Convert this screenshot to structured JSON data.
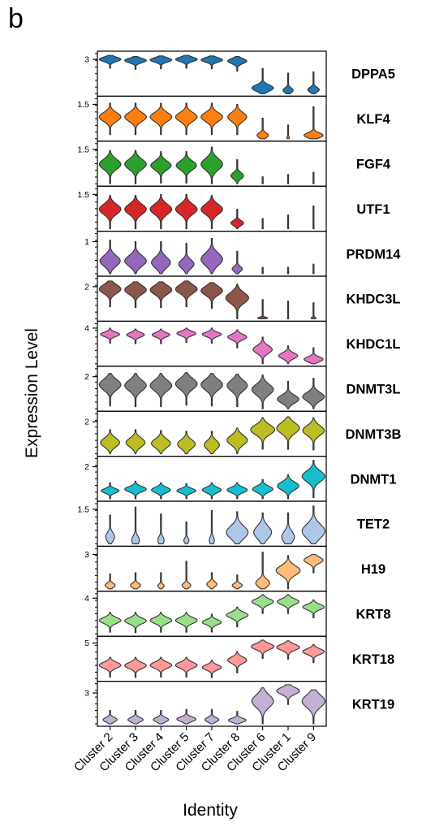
{
  "panel_letter": "b",
  "chart_data": {
    "type": "violin",
    "xlabel": "Identity",
    "ylabel": "Expression Level",
    "categories": [
      "Cluster 2",
      "Cluster 3",
      "Cluster 4",
      "Cluster 5",
      "Cluster 7",
      "Cluster 8",
      "Cluster 6",
      "Cluster 1",
      "Cluster 9"
    ],
    "genes": [
      {
        "name": "DPPA5",
        "color": "#1f77b4",
        "ymax": 3.5,
        "tick": "3",
        "tickval": 3,
        "centers": [
          3.0,
          2.9,
          2.95,
          3.0,
          2.95,
          2.85,
          0.5,
          0.3,
          0.35
        ],
        "spread": [
          0.35,
          0.35,
          0.35,
          0.35,
          0.35,
          0.4,
          0.5,
          0.4,
          0.4
        ],
        "widths": [
          0.85,
          0.85,
          0.85,
          0.85,
          0.85,
          0.75,
          0.85,
          0.4,
          0.45
        ],
        "tails": [
          0.5,
          0.55,
          0.3,
          0.8,
          0.45,
          0.6,
          0.0,
          0.0,
          0.0
        ],
        "tops": [
          3.3,
          3.2,
          3.25,
          3.3,
          3.25,
          3.15,
          2.2,
          1.8,
          1.9
        ]
      },
      {
        "name": "KLF4",
        "color": "#ff7f0e",
        "ymax": 1.75,
        "tick": "1.5",
        "tickval": 1.5,
        "centers": [
          0.95,
          0.95,
          0.95,
          0.95,
          0.95,
          0.95,
          0.15,
          0.05,
          0.15
        ],
        "spread": [
          0.35,
          0.35,
          0.35,
          0.35,
          0.35,
          0.35,
          0.2,
          0.1,
          0.2
        ],
        "widths": [
          0.85,
          0.85,
          0.85,
          0.85,
          0.85,
          0.75,
          0.45,
          0.1,
          0.75
        ],
        "tails": [
          0.15,
          0.15,
          0.15,
          0.15,
          0.15,
          0.15,
          0.0,
          0.0,
          0.0
        ],
        "tops": [
          1.55,
          1.55,
          1.55,
          1.55,
          1.55,
          1.5,
          0.9,
          0.6,
          1.4
        ]
      },
      {
        "name": "FGF4",
        "color": "#2ca02c",
        "ymax": 1.75,
        "tick": "1.5",
        "tickval": 1.5,
        "centers": [
          0.85,
          0.85,
          0.8,
          0.8,
          0.85,
          0.35,
          0.05,
          0.05,
          0.05
        ],
        "spread": [
          0.4,
          0.4,
          0.35,
          0.35,
          0.45,
          0.25,
          0.05,
          0.05,
          0.05
        ],
        "widths": [
          0.85,
          0.85,
          0.8,
          0.8,
          0.85,
          0.5,
          0.05,
          0.05,
          0.05
        ],
        "tails": [
          0.0,
          0.0,
          0.0,
          0.0,
          0.0,
          0.0,
          0.0,
          0.0,
          0.0
        ],
        "tops": [
          1.45,
          1.45,
          1.4,
          1.4,
          1.6,
          1.05,
          0.3,
          0.4,
          0.5
        ]
      },
      {
        "name": "UTF1",
        "color": "#d62728",
        "ymax": 1.75,
        "tick": "1.5",
        "tickval": 1.5,
        "centers": [
          0.85,
          0.85,
          0.85,
          0.85,
          0.85,
          0.25,
          0.05,
          0.05,
          0.05
        ],
        "spread": [
          0.4,
          0.4,
          0.4,
          0.4,
          0.4,
          0.2,
          0.05,
          0.05,
          0.05
        ],
        "widths": [
          0.85,
          0.85,
          0.85,
          0.85,
          0.85,
          0.5,
          0.05,
          0.05,
          0.05
        ],
        "tails": [
          0.0,
          0.0,
          0.0,
          0.0,
          0.0,
          0.0,
          0.0,
          0.0,
          0.0
        ],
        "tops": [
          1.45,
          1.45,
          1.5,
          1.5,
          1.45,
          0.85,
          0.45,
          0.6,
          1.0
        ]
      },
      {
        "name": "PRDM14",
        "color": "#9467bd",
        "ymax": 1.25,
        "tick": "1",
        "tickval": 1,
        "centers": [
          0.4,
          0.4,
          0.35,
          0.3,
          0.45,
          0.15,
          0.05,
          0.05,
          0.05
        ],
        "spread": [
          0.3,
          0.3,
          0.3,
          0.25,
          0.35,
          0.15,
          0.05,
          0.05,
          0.05
        ],
        "widths": [
          0.8,
          0.85,
          0.75,
          0.6,
          0.85,
          0.4,
          0.05,
          0.05,
          0.05
        ],
        "tails": [
          0.0,
          0.0,
          0.0,
          0.0,
          0.0,
          0.0,
          0.0,
          0.0,
          0.0
        ],
        "tops": [
          1.05,
          1.0,
          1.0,
          0.95,
          1.1,
          0.7,
          0.2,
          0.2,
          0.3
        ]
      },
      {
        "name": "KHDC3L",
        "color": "#8c564b",
        "ymax": 2.5,
        "tick": "2",
        "tickval": 2,
        "centers": [
          1.85,
          1.8,
          1.8,
          1.85,
          1.75,
          1.3,
          0.05,
          0.05,
          0.05
        ],
        "spread": [
          0.5,
          0.5,
          0.5,
          0.5,
          0.5,
          0.6,
          0.1,
          0.05,
          0.1
        ],
        "widths": [
          0.85,
          0.85,
          0.85,
          0.85,
          0.85,
          0.9,
          0.4,
          0.05,
          0.2
        ],
        "tails": [
          0.0,
          0.0,
          0.0,
          0.0,
          0.0,
          0.0,
          0.0,
          0.0,
          0.0
        ],
        "tops": [
          2.3,
          2.3,
          2.3,
          2.3,
          2.25,
          2.15,
          1.2,
          1.1,
          1.0
        ]
      },
      {
        "name": "KHDC1L",
        "color": "#e377c2",
        "ymax": 4.5,
        "tick": "4",
        "tickval": 4,
        "centers": [
          3.3,
          3.25,
          3.25,
          3.4,
          3.3,
          3.0,
          1.6,
          0.9,
          0.5
        ],
        "spread": [
          0.45,
          0.45,
          0.45,
          0.45,
          0.45,
          0.55,
          0.8,
          0.6,
          0.5
        ],
        "widths": [
          0.75,
          0.7,
          0.7,
          0.75,
          0.75,
          0.75,
          0.75,
          0.75,
          0.75
        ],
        "tails": [
          0.3,
          0.3,
          0.3,
          0.3,
          0.3,
          0.3,
          0.0,
          0.0,
          0.0
        ],
        "tops": [
          4.0,
          3.9,
          3.9,
          4.0,
          4.0,
          3.8,
          3.0,
          2.0,
          1.8
        ]
      },
      {
        "name": "DNMT3L",
        "color": "#7f7f7f",
        "ymax": 2.5,
        "tick": "2",
        "tickval": 2,
        "centers": [
          1.5,
          1.45,
          1.45,
          1.55,
          1.5,
          1.45,
          1.2,
          0.6,
          0.75
        ],
        "spread": [
          0.6,
          0.6,
          0.6,
          0.6,
          0.6,
          0.6,
          0.6,
          0.45,
          0.5
        ],
        "widths": [
          0.85,
          0.85,
          0.85,
          0.85,
          0.85,
          0.8,
          0.85,
          0.85,
          0.85
        ],
        "tails": [
          0.2,
          0.2,
          0.2,
          0.2,
          0.2,
          0.2,
          0.0,
          0.0,
          0.0
        ],
        "tops": [
          2.2,
          2.2,
          2.2,
          2.25,
          2.2,
          2.15,
          2.1,
          1.7,
          1.9
        ]
      },
      {
        "name": "DNMT3B",
        "color": "#bcbd22",
        "ymax": 2.5,
        "tick": "2",
        "tickval": 2,
        "centers": [
          0.7,
          0.7,
          0.65,
          0.6,
          0.55,
          0.85,
          1.5,
          1.6,
          1.45
        ],
        "spread": [
          0.5,
          0.5,
          0.5,
          0.5,
          0.5,
          0.55,
          0.55,
          0.6,
          0.55
        ],
        "widths": [
          0.75,
          0.75,
          0.75,
          0.7,
          0.6,
          0.8,
          0.95,
          0.9,
          0.85
        ],
        "tails": [
          0.0,
          0.0,
          0.0,
          0.0,
          0.0,
          0.0,
          0.0,
          0.0,
          0.0
        ],
        "tops": [
          1.5,
          1.5,
          1.45,
          1.4,
          1.4,
          1.6,
          2.25,
          2.3,
          2.25
        ]
      },
      {
        "name": "DNMT1",
        "color": "#17becf",
        "ymax": 2.5,
        "tick": "2",
        "tickval": 2,
        "centers": [
          0.5,
          0.6,
          0.55,
          0.5,
          0.55,
          0.55,
          0.6,
          0.8,
          1.4
        ],
        "spread": [
          0.25,
          0.3,
          0.3,
          0.25,
          0.3,
          0.3,
          0.35,
          0.45,
          0.6
        ],
        "widths": [
          0.7,
          0.85,
          0.75,
          0.75,
          0.75,
          0.8,
          0.8,
          0.85,
          0.9
        ],
        "tails": [
          0.0,
          0.0,
          0.0,
          0.0,
          0.0,
          0.0,
          0.0,
          0.0,
          0.0
        ],
        "tops": [
          1.0,
          1.1,
          1.0,
          0.95,
          1.0,
          1.0,
          1.2,
          1.5,
          2.4
        ]
      },
      {
        "name": "TET2",
        "color": "#aec7e8",
        "ymax": 1.75,
        "tick": "1.5",
        "tickval": 1.5,
        "centers": [
          0.3,
          0.15,
          0.15,
          0.15,
          0.15,
          0.5,
          0.5,
          0.3,
          0.55
        ],
        "spread": [
          0.35,
          0.35,
          0.3,
          0.2,
          0.3,
          0.5,
          0.5,
          0.45,
          0.55
        ],
        "widths": [
          0.35,
          0.3,
          0.25,
          0.2,
          0.2,
          0.85,
          0.7,
          0.5,
          0.9
        ],
        "tails": [
          0.0,
          0.0,
          0.0,
          0.0,
          0.0,
          0.0,
          0.0,
          0.0,
          0.0
        ],
        "tops": [
          1.25,
          1.6,
          1.3,
          0.95,
          1.45,
          1.4,
          1.35,
          1.35,
          1.65
        ]
      },
      {
        "name": "H19",
        "color": "#ffbb78",
        "ymax": 3.5,
        "tick": "3",
        "tickval": 3,
        "centers": [
          0.3,
          0.3,
          0.25,
          0.3,
          0.4,
          0.3,
          0.5,
          1.6,
          2.5
        ],
        "spread": [
          0.35,
          0.35,
          0.3,
          0.35,
          0.4,
          0.3,
          0.6,
          0.75,
          0.5
        ],
        "widths": [
          0.4,
          0.4,
          0.25,
          0.35,
          0.4,
          0.4,
          0.55,
          0.95,
          0.75
        ],
        "tails": [
          0.0,
          0.0,
          0.0,
          0.0,
          0.0,
          0.0,
          0.0,
          0.0,
          0.0
        ],
        "tops": [
          1.3,
          1.4,
          1.4,
          2.4,
          1.4,
          1.2,
          3.2,
          2.9,
          3.0
        ]
      },
      {
        "name": "KRT8",
        "color": "#98df8a",
        "ymax": 4.5,
        "tick": "4",
        "tickval": 4,
        "centers": [
          1.5,
          1.45,
          1.5,
          1.5,
          1.3,
          2.1,
          3.6,
          3.6,
          3.0
        ],
        "spread": [
          0.6,
          0.6,
          0.6,
          0.6,
          0.5,
          0.6,
          0.6,
          0.6,
          0.55
        ],
        "widths": [
          0.85,
          0.85,
          0.85,
          0.85,
          0.75,
          0.85,
          0.85,
          0.85,
          0.85
        ],
        "tails": [
          0.0,
          0.0,
          0.0,
          0.0,
          0.0,
          0.0,
          0.0,
          0.0,
          0.0
        ],
        "tops": [
          2.4,
          2.4,
          2.4,
          2.4,
          2.2,
          3.0,
          4.4,
          4.4,
          3.8
        ]
      },
      {
        "name": "KRT18",
        "color": "#ff9896",
        "ymax": 5.6,
        "tick": "5",
        "tickval": 5,
        "centers": [
          1.9,
          1.85,
          1.9,
          1.9,
          1.6,
          2.6,
          4.5,
          4.4,
          3.8
        ],
        "spread": [
          0.75,
          0.75,
          0.75,
          0.75,
          0.65,
          0.8,
          0.75,
          0.75,
          0.7
        ],
        "widths": [
          0.85,
          0.85,
          0.85,
          0.85,
          0.75,
          0.75,
          0.9,
          0.9,
          0.85
        ],
        "tails": [
          0.0,
          0.0,
          0.0,
          0.0,
          0.0,
          0.0,
          0.0,
          0.0,
          0.0
        ],
        "tops": [
          3.0,
          3.0,
          3.0,
          3.0,
          2.6,
          3.8,
          5.4,
          5.3,
          4.8
        ]
      },
      {
        "name": "KRT19",
        "color": "#c5b0d5",
        "ymax": 3.9,
        "tick": "3",
        "tickval": 3,
        "centers": [
          0.4,
          0.4,
          0.4,
          0.45,
          0.4,
          0.35,
          2.2,
          3.2,
          2.2
        ],
        "spread": [
          0.4,
          0.4,
          0.4,
          0.4,
          0.4,
          0.35,
          1.1,
          0.6,
          1.1
        ],
        "widths": [
          0.55,
          0.6,
          0.6,
          0.75,
          0.55,
          0.7,
          0.85,
          0.9,
          0.9
        ],
        "tails": [
          0.0,
          0.0,
          0.0,
          0.0,
          0.0,
          0.0,
          0.0,
          0.0,
          0.0
        ],
        "tops": [
          1.3,
          1.3,
          1.3,
          1.4,
          1.4,
          1.2,
          3.5,
          3.7,
          3.3
        ]
      }
    ]
  }
}
